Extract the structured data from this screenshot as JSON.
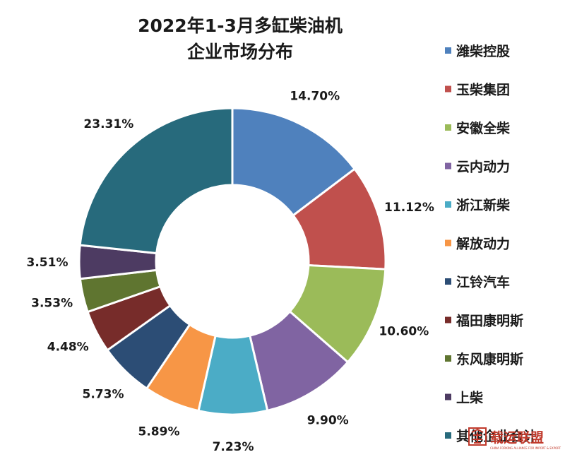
{
  "chart_data": {
    "type": "pie",
    "title": [
      "2022年1-3月多缸柴油机",
      "企业市场分布"
    ],
    "categories": [
      "潍柴控股",
      "玉柴集团",
      "安徽全柴",
      "云内动力",
      "浙江新柴",
      "解放动力",
      "江铃汽车",
      "福田康明斯",
      "东风康明斯",
      "上柴",
      "其他企业合计"
    ],
    "values": [
      14.7,
      11.12,
      10.6,
      9.9,
      7.23,
      5.89,
      5.73,
      4.48,
      3.53,
      3.51,
      23.31
    ],
    "value_labels": [
      "14.70%",
      "11.12%",
      "10.60%",
      "9.90%",
      "7.23%",
      "5.89%",
      "5.73%",
      "4.48%",
      "3.53%",
      "3.51%",
      "23.31%"
    ],
    "colors": [
      "#4f81bd",
      "#c0504d",
      "#9bbb59",
      "#8064a2",
      "#4bacc6",
      "#f79646",
      "#2c4d75",
      "#772c2a",
      "#5f7530",
      "#4d3b62",
      "#276a7c"
    ],
    "donut": true,
    "legend_position": "right"
  },
  "watermark": {
    "text": "载运联盟",
    "subtext": "CHINA FORKING ALLIANCE FOR IMPORT & EXPORT",
    "icon": "logo-icon"
  }
}
